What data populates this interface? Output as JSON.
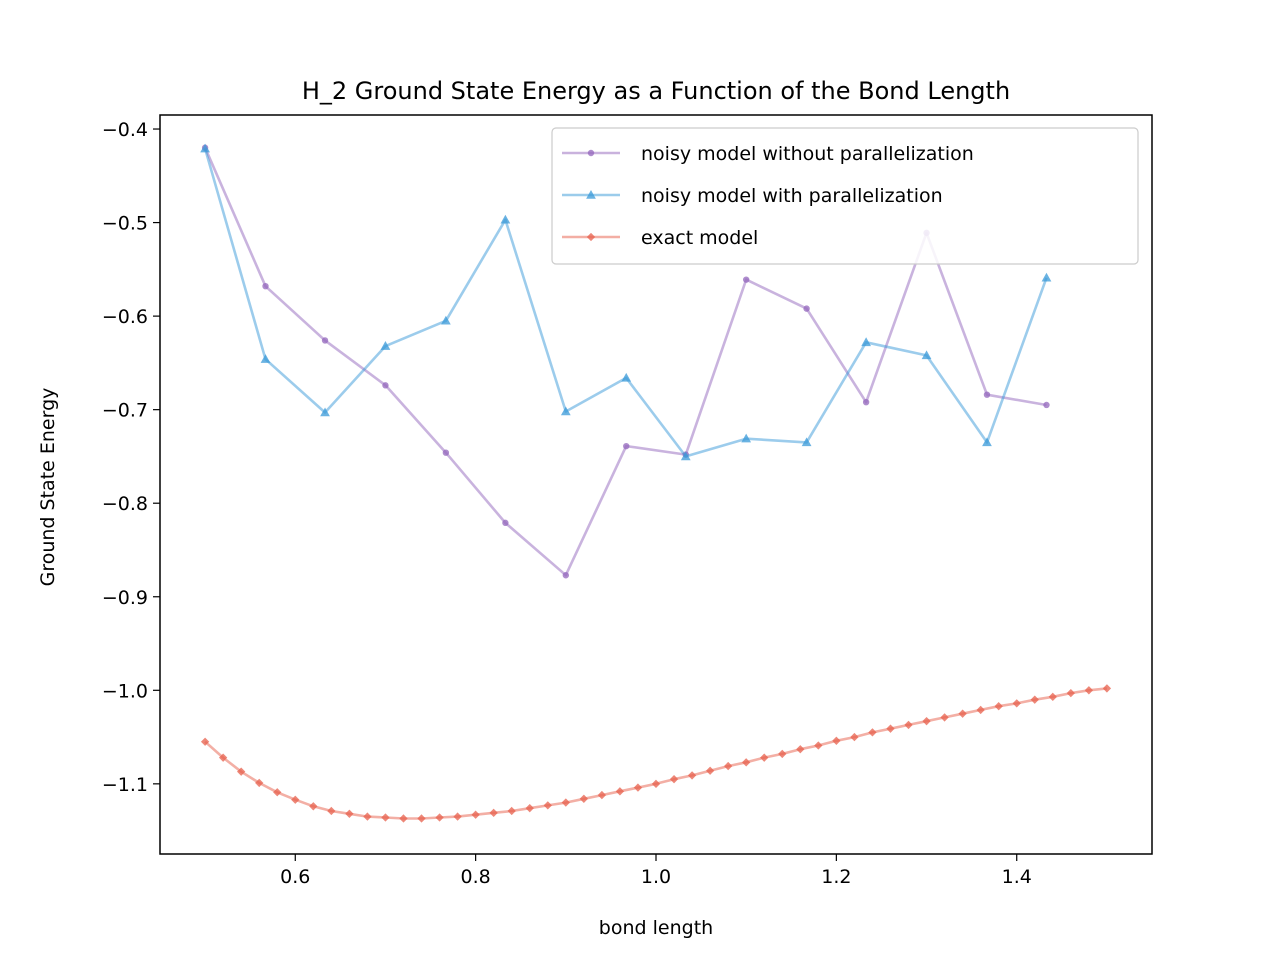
{
  "chart_data": {
    "type": "line",
    "title": "H_2 Ground State Energy as a Function of the Bond Length",
    "xlabel": "bond length",
    "ylabel": "Ground State Energy",
    "xlim": [
      0.45,
      1.55
    ],
    "ylim": [
      -1.175,
      -0.385
    ],
    "grid": false,
    "legend_position": "upper right",
    "x_ticks": [
      0.6,
      0.8,
      1.0,
      1.2,
      1.4
    ],
    "x_tick_labels": [
      "0.6",
      "0.8",
      "1.0",
      "1.2",
      "1.4"
    ],
    "y_ticks": [
      -1.1,
      -1.0,
      -0.9,
      -0.8,
      -0.7,
      -0.6,
      -0.5,
      -0.4
    ],
    "y_tick_labels": [
      "−1.1",
      "−1.0",
      "−0.9",
      "−0.8",
      "−0.7",
      "−0.6",
      "−0.5",
      "−0.4"
    ],
    "series": [
      {
        "name": "noisy model without parallelization",
        "color": "#9467bd",
        "marker": "circle",
        "x": [
          0.5,
          0.567,
          0.633,
          0.7,
          0.767,
          0.833,
          0.9,
          0.967,
          1.033,
          1.1,
          1.167,
          1.233,
          1.3,
          1.367,
          1.433
        ],
        "y": [
          -0.42,
          -0.568,
          -0.626,
          -0.674,
          -0.746,
          -0.821,
          -0.877,
          -0.739,
          -0.748,
          -0.561,
          -0.592,
          -0.692,
          -0.511,
          -0.684,
          -0.695
        ]
      },
      {
        "name": "noisy model with parallelization",
        "color": "#3a9ad9",
        "marker": "triangle",
        "x": [
          0.5,
          0.567,
          0.633,
          0.7,
          0.767,
          0.833,
          0.9,
          0.967,
          1.033,
          1.1,
          1.167,
          1.233,
          1.3,
          1.367,
          1.433
        ],
        "y": [
          -0.421,
          -0.646,
          -0.703,
          -0.632,
          -0.605,
          -0.497,
          -0.702,
          -0.666,
          -0.75,
          -0.731,
          -0.735,
          -0.628,
          -0.642,
          -0.735,
          -0.559
        ]
      },
      {
        "name": "exact model",
        "color": "#e8604c",
        "marker": "diamond",
        "x": [
          0.5,
          0.52,
          0.54,
          0.56,
          0.58,
          0.6,
          0.62,
          0.64,
          0.66,
          0.68,
          0.7,
          0.72,
          0.74,
          0.76,
          0.78,
          0.8,
          0.82,
          0.84,
          0.86,
          0.88,
          0.9,
          0.92,
          0.94,
          0.96,
          0.98,
          1.0,
          1.02,
          1.04,
          1.06,
          1.08,
          1.1,
          1.12,
          1.14,
          1.16,
          1.18,
          1.2,
          1.22,
          1.24,
          1.26,
          1.28,
          1.3,
          1.32,
          1.34,
          1.36,
          1.38,
          1.4,
          1.42,
          1.44,
          1.46,
          1.48,
          1.5
        ],
        "y": [
          -1.055,
          -1.072,
          -1.087,
          -1.099,
          -1.109,
          -1.117,
          -1.124,
          -1.129,
          -1.132,
          -1.135,
          -1.136,
          -1.137,
          -1.137,
          -1.136,
          -1.135,
          -1.133,
          -1.131,
          -1.129,
          -1.126,
          -1.123,
          -1.12,
          -1.116,
          -1.112,
          -1.108,
          -1.104,
          -1.1,
          -1.095,
          -1.091,
          -1.086,
          -1.081,
          -1.077,
          -1.072,
          -1.068,
          -1.063,
          -1.059,
          -1.054,
          -1.05,
          -1.045,
          -1.041,
          -1.037,
          -1.033,
          -1.029,
          -1.025,
          -1.021,
          -1.017,
          -1.014,
          -1.01,
          -1.007,
          -1.003,
          -1.0,
          -0.998
        ]
      }
    ]
  }
}
